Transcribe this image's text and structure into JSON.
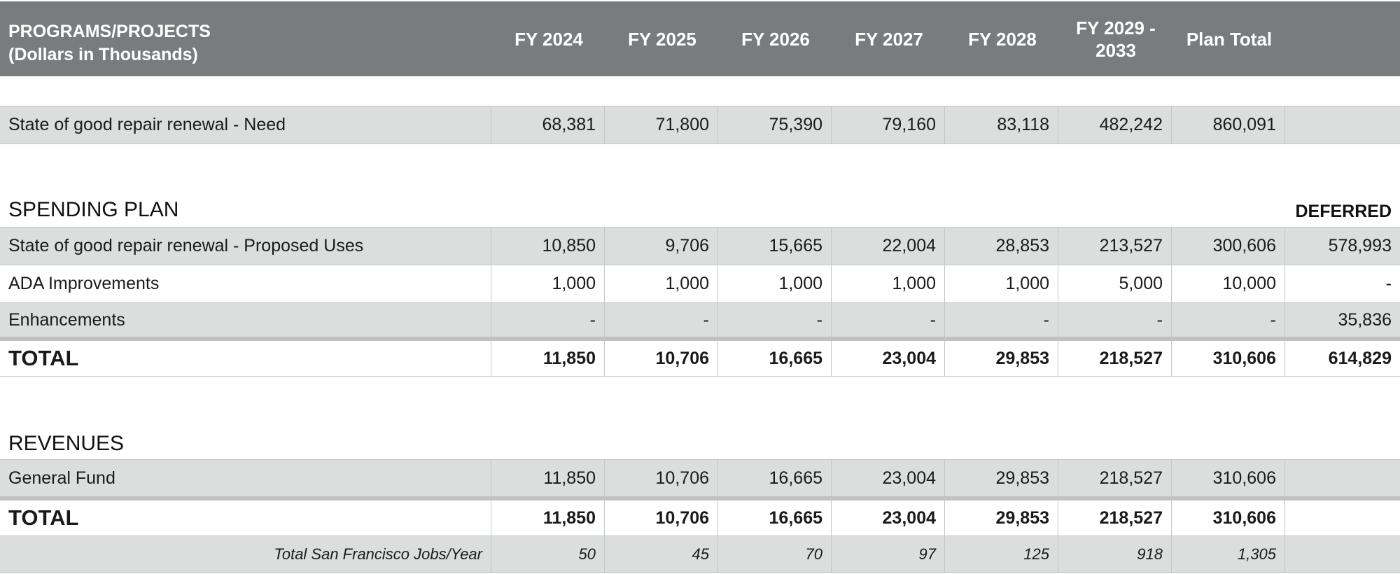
{
  "header": {
    "title_line1": "PROGRAMS/PROJECTS",
    "title_line2": "(Dollars in Thousands)",
    "columns": [
      "FY 2024",
      "FY 2025",
      "FY 2026",
      "FY 2027",
      "FY 2028",
      "FY 2029 - 2033",
      "Plan Total"
    ]
  },
  "need_row": {
    "label": "State of good repair renewal - Need",
    "values": [
      "68,381",
      "71,800",
      "75,390",
      "79,160",
      "83,118",
      "482,242",
      "860,091",
      ""
    ]
  },
  "spending_plan": {
    "title": "SPENDING PLAN",
    "deferred_label": "DEFERRED",
    "rows": [
      {
        "label": "State of good repair renewal - Proposed Uses",
        "values": [
          "10,850",
          "9,706",
          "15,665",
          "22,004",
          "28,853",
          "213,527",
          "300,606",
          "578,993"
        ]
      },
      {
        "label": "ADA Improvements",
        "values": [
          "1,000",
          "1,000",
          "1,000",
          "1,000",
          "1,000",
          "5,000",
          "10,000",
          "-"
        ]
      },
      {
        "label": "Enhancements",
        "values": [
          "-",
          "-",
          "-",
          "-",
          "-",
          "-",
          "-",
          "35,836"
        ]
      }
    ],
    "total": {
      "label": "TOTAL",
      "values": [
        "11,850",
        "10,706",
        "16,665",
        "23,004",
        "29,853",
        "218,527",
        "310,606",
        "614,829"
      ]
    }
  },
  "revenues": {
    "title": "REVENUES",
    "rows": [
      {
        "label": "General Fund",
        "values": [
          "11,850",
          "10,706",
          "16,665",
          "23,004",
          "29,853",
          "218,527",
          "310,606",
          ""
        ]
      }
    ],
    "total": {
      "label": "TOTAL",
      "values": [
        "11,850",
        "10,706",
        "16,665",
        "23,004",
        "29,853",
        "218,527",
        "310,606",
        ""
      ]
    },
    "jobs": {
      "label": "Total San Francisco Jobs/Year",
      "values": [
        "50",
        "45",
        "70",
        "97",
        "125",
        "918",
        "1,305",
        ""
      ]
    }
  }
}
